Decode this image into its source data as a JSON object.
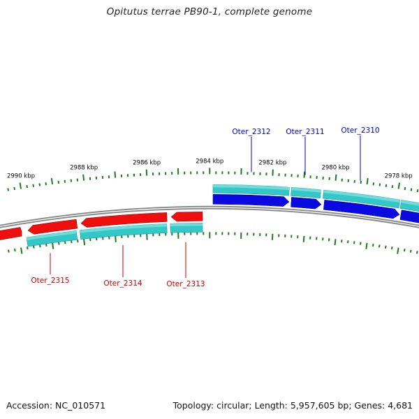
{
  "title": "Opitutus terrae PB90-1, complete genome",
  "footer": {
    "accession": "Accession: NC_010571",
    "summary": "Topology: circular; Length: 5,957,605 bp; Genes: 4,681"
  },
  "colors": {
    "forward_gene": "#0a0ae0",
    "reverse_gene": "#ee0e0e",
    "cds_track": "#33c7c7",
    "tick": "#1e7a1e",
    "backbone": "#888888",
    "forward_label": "#0000c8",
    "reverse_label": "#c80000"
  },
  "scale": {
    "unit": "kbp",
    "ticks": [
      {
        "label": "2990 kbp"
      },
      {
        "label": "2988 kbp"
      },
      {
        "label": "2986 kbp"
      },
      {
        "label": "2984 kbp"
      },
      {
        "label": "2982 kbp"
      },
      {
        "label": "2980 kbp"
      },
      {
        "label": "2978 kbp"
      }
    ]
  },
  "genes": {
    "forward": [
      {
        "label": "Oter_2312"
      },
      {
        "label": "Oter_2311"
      },
      {
        "label": "Oter_2310"
      }
    ],
    "reverse": [
      {
        "label": "Oter_2315"
      },
      {
        "label": "Oter_2314"
      },
      {
        "label": "Oter_2313"
      }
    ]
  }
}
